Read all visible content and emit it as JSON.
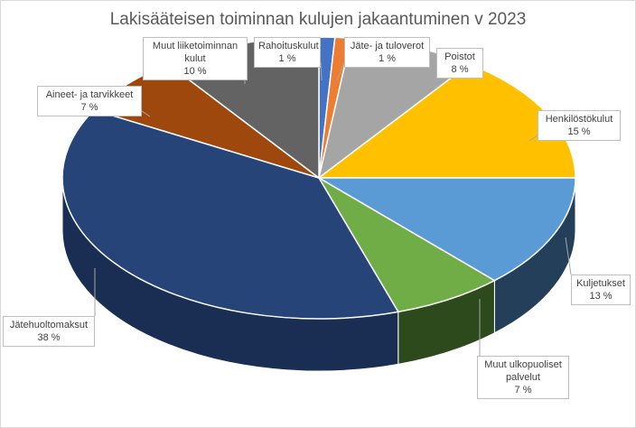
{
  "chart_data": {
    "type": "pie",
    "title": "Lakisääteisen toiminnan kulujen jakaantuminen v 2023",
    "slices": [
      {
        "key": "rahoituskulut",
        "label": "Rahoituskulut",
        "value": 1,
        "value_label": "1 %",
        "color": "#4472C4",
        "side_color": "#2f4f88"
      },
      {
        "key": "jate-ja-tuloverot",
        "label": "Jäte- ja tuloverot",
        "value": 1,
        "value_label": "1 %",
        "color": "#ED7D31",
        "side_color": "#a35622"
      },
      {
        "key": "poistot",
        "label": "Poistot",
        "value": 8,
        "value_label": "8 %",
        "color": "#A5A5A5",
        "side_color": "#727272"
      },
      {
        "key": "henkilostokulut",
        "label": "Henkilöstökulut",
        "value": 15,
        "value_label": "15 %",
        "color": "#FFC000",
        "side_color": "#b08500"
      },
      {
        "key": "kuljetukset",
        "label": "Kuljetukset",
        "value": 13,
        "value_label": "13 %",
        "color": "#5B9BD5",
        "side_color": "#243f5a"
      },
      {
        "key": "muut-ulkopuoliset-palvelut",
        "label": "Muut ulkopuoliset palvelut",
        "value": 7,
        "value_label": "7 %",
        "color": "#70AD47",
        "side_color": "#2c4a1c"
      },
      {
        "key": "jatehuoltomaksut",
        "label": "Jätehuoltomaksut",
        "value": 38,
        "value_label": "38 %",
        "color": "#264478",
        "side_color": "#1a2d52"
      },
      {
        "key": "aineet-ja-tarvikkeet",
        "label": "Aineet- ja tarvikkeet",
        "value": 7,
        "value_label": "7 %",
        "color": "#9E480E",
        "side_color": "#6b300a"
      },
      {
        "key": "muut-liiketoiminnan-kulut",
        "label": "Muut liiketoiminnan kulut",
        "value": 10,
        "value_label": "10 %",
        "color": "#636363",
        "side_color": "#444444"
      }
    ],
    "legend": "none",
    "style": "3d"
  }
}
